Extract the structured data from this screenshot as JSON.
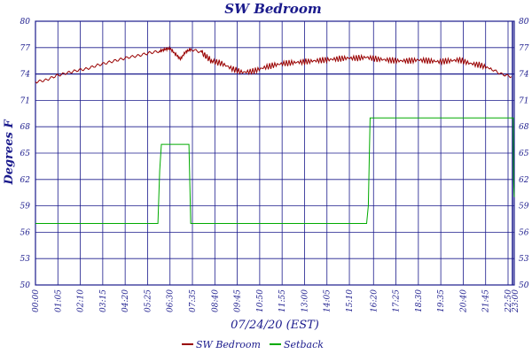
{
  "chart_data": {
    "type": "line",
    "title": "SW Bedroom",
    "ylabel": "Degrees F",
    "xlabel": "07/24/20 (EST)",
    "ylim": [
      50,
      80
    ],
    "y_ticks": [
      "50",
      "53",
      "56",
      "59",
      "62",
      "65",
      "68",
      "71",
      "74",
      "77",
      "80"
    ],
    "x_ticks": [
      "00:00",
      "01:05",
      "02:10",
      "03:15",
      "04:20",
      "05:25",
      "06:30",
      "07:35",
      "08:40",
      "09:45",
      "10:50",
      "11:55",
      "13:00",
      "14:05",
      "15:10",
      "16:20",
      "17:25",
      "18:30",
      "19:35",
      "20:40",
      "21:45",
      "22:50",
      "23:00"
    ],
    "grid": true,
    "legend_position": "bottom-center",
    "colors": {
      "axis": "#1a1a8c",
      "grid": "#1a1a8c",
      "text": "#1a1a8c",
      "sw_bedroom": "#990000",
      "setback": "#00aa00"
    },
    "series": [
      {
        "name": "SW Bedroom",
        "x": [
          "00:00",
          "00:30",
          "01:00",
          "01:30",
          "02:00",
          "02:30",
          "03:00",
          "03:30",
          "04:00",
          "04:30",
          "05:00",
          "05:30",
          "06:00",
          "06:15",
          "06:30",
          "06:45",
          "07:00",
          "07:15",
          "07:30",
          "08:00",
          "08:15",
          "08:30",
          "09:00",
          "09:30",
          "10:00",
          "10:30",
          "11:00",
          "11:30",
          "12:00",
          "12:30",
          "13:00",
          "13:30",
          "14:00",
          "14:30",
          "15:00",
          "15:30",
          "16:00",
          "16:30",
          "17:00",
          "17:30",
          "18:00",
          "18:30",
          "19:00",
          "19:30",
          "20:00",
          "20:30",
          "21:00",
          "21:30",
          "22:00",
          "22:30",
          "23:00"
        ],
        "values": [
          73.1,
          73.3,
          73.8,
          74.1,
          74.4,
          74.6,
          75.0,
          75.3,
          75.6,
          75.9,
          76.1,
          76.4,
          76.6,
          76.8,
          76.9,
          76.3,
          75.7,
          76.5,
          76.8,
          76.5,
          76.0,
          75.5,
          75.2,
          74.6,
          74.2,
          74.3,
          74.7,
          75.0,
          75.2,
          75.3,
          75.4,
          75.5,
          75.6,
          75.7,
          75.8,
          75.8,
          75.9,
          75.7,
          75.6,
          75.5,
          75.5,
          75.6,
          75.5,
          75.4,
          75.5,
          75.6,
          75.2,
          75.0,
          74.6,
          74.0,
          73.7
        ]
      },
      {
        "name": "Setback",
        "x": [
          "00:00",
          "05:55",
          "06:00",
          "06:05",
          "07:25",
          "07:30",
          "16:00",
          "16:05",
          "16:10",
          "23:05",
          "23:06",
          "23:08"
        ],
        "values": [
          57,
          57,
          63,
          66,
          66,
          57,
          57,
          59,
          69,
          69,
          62,
          60
        ]
      }
    ]
  }
}
